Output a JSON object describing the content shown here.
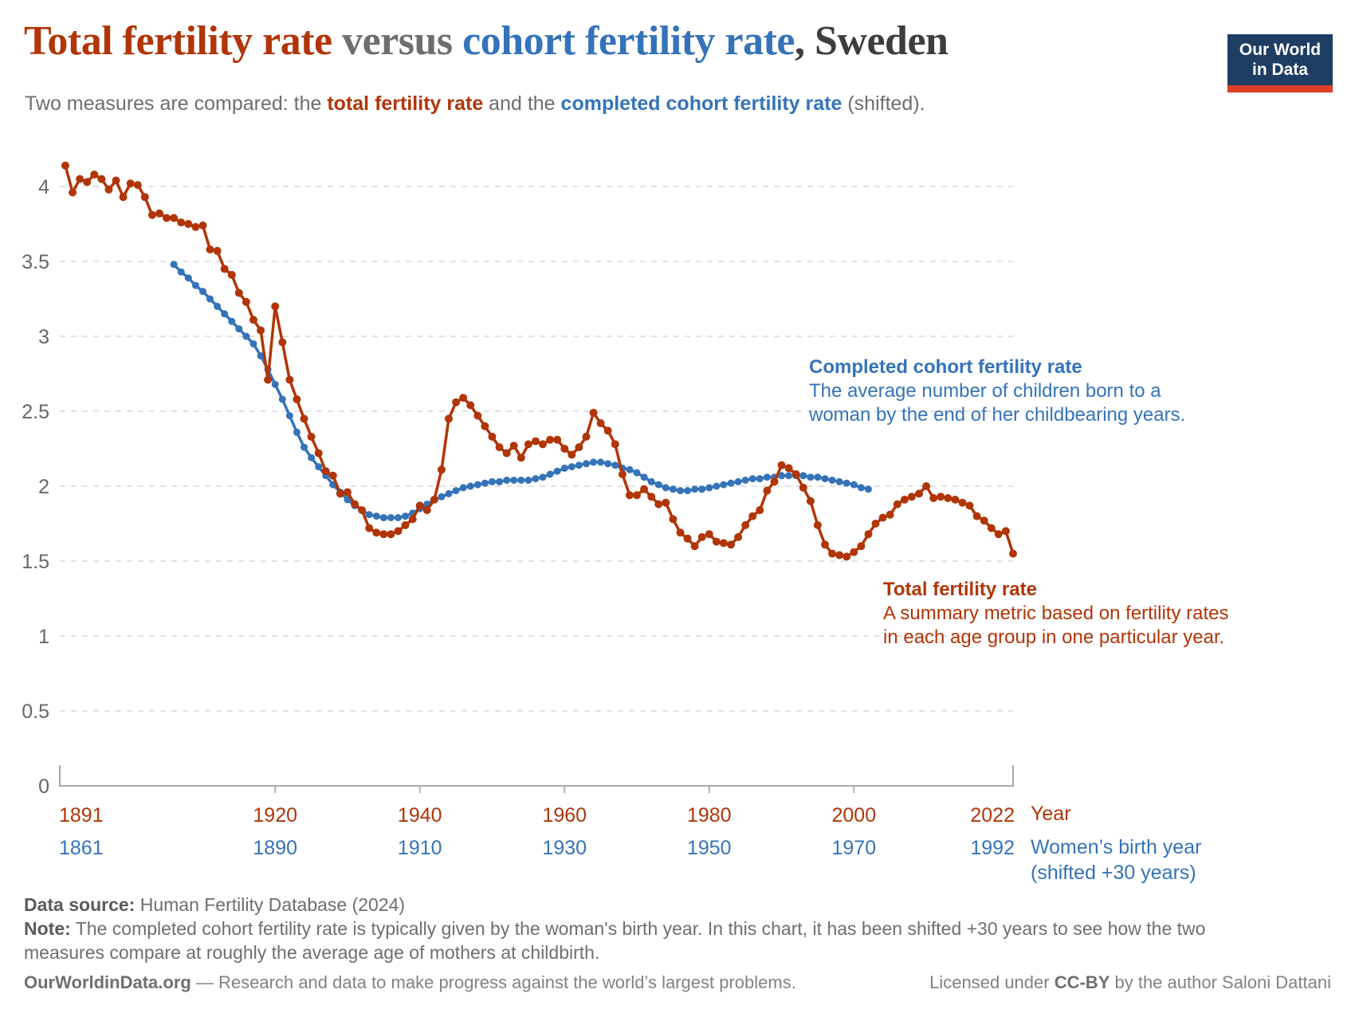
{
  "header": {
    "title": {
      "tfr": "Total fertility rate",
      "versus": " versus ",
      "ccf": "cohort fertility rate",
      "country": ", Sweden"
    },
    "subtitle": {
      "prefix": "Two measures are compared: the ",
      "bold_red": "total fertility rate",
      "mid": " and the ",
      "bold_blue": "completed cohort fertility rate",
      "suffix": " (shifted)."
    },
    "logo": {
      "line1": "Our World",
      "line2": "in Data"
    }
  },
  "chart_data": {
    "type": "line",
    "title": "Total fertility rate versus cohort fertility rate, Sweden",
    "grid": true,
    "colors": {
      "tfr_red": "#b13507",
      "cohort_blue": "#3573b9"
    },
    "y_axis": {
      "range": [
        0,
        4.25
      ],
      "ticks": [
        {
          "value": 0,
          "label": "0"
        },
        {
          "value": 0.5,
          "label": "0.5"
        },
        {
          "value": 1,
          "label": "1"
        },
        {
          "value": 1.5,
          "label": "1.5"
        },
        {
          "value": 2,
          "label": "2"
        },
        {
          "value": 2.5,
          "label": "2.5"
        },
        {
          "value": 3,
          "label": "3"
        },
        {
          "value": 3.5,
          "label": "3.5"
        },
        {
          "value": 4,
          "label": "4"
        }
      ]
    },
    "x_axis": {
      "year_title": "Year",
      "birth_title": "Women’s birth year",
      "birth_title_note": "(shifted +30 years)",
      "ticks": [
        {
          "year": 1891,
          "year_label": "1891",
          "birth_label": "1861"
        },
        {
          "year": 1920,
          "year_label": "1920",
          "birth_label": "1890"
        },
        {
          "year": 1940,
          "year_label": "1940",
          "birth_label": "1910"
        },
        {
          "year": 1960,
          "year_label": "1960",
          "birth_label": "1930"
        },
        {
          "year": 1980,
          "year_label": "1980",
          "birth_label": "1950"
        },
        {
          "year": 2000,
          "year_label": "2000",
          "birth_label": "1970"
        },
        {
          "year": 2022,
          "year_label": "2022",
          "birth_label": "1992"
        }
      ]
    },
    "series": [
      {
        "name": "Total fertility rate",
        "color": "#b13507",
        "start_year": 1891,
        "end_year": 2022,
        "values": [
          4.14,
          3.96,
          4.05,
          4.03,
          4.08,
          4.05,
          3.98,
          4.04,
          3.93,
          4.02,
          4.01,
          3.93,
          3.81,
          3.82,
          3.79,
          3.79,
          3.76,
          3.75,
          3.73,
          3.74,
          3.58,
          3.57,
          3.45,
          3.41,
          3.29,
          3.23,
          3.11,
          3.04,
          2.71,
          3.2,
          2.96,
          2.71,
          2.58,
          2.45,
          2.33,
          2.22,
          2.1,
          2.07,
          1.95,
          1.96,
          1.88,
          1.84,
          1.72,
          1.69,
          1.68,
          1.68,
          1.7,
          1.74,
          1.78,
          1.87,
          1.84,
          1.91,
          2.11,
          2.45,
          2.56,
          2.59,
          2.54,
          2.47,
          2.4,
          2.33,
          2.26,
          2.22,
          2.27,
          2.19,
          2.28,
          2.3,
          2.28,
          2.31,
          2.31,
          2.25,
          2.21,
          2.26,
          2.33,
          2.49,
          2.42,
          2.37,
          2.28,
          2.08,
          1.94,
          1.94,
          1.98,
          1.93,
          1.88,
          1.89,
          1.78,
          1.69,
          1.65,
          1.6,
          1.66,
          1.68,
          1.63,
          1.62,
          1.61,
          1.66,
          1.74,
          1.8,
          1.84,
          1.97,
          2.03,
          2.14,
          2.12,
          2.08,
          1.99,
          1.9,
          1.74,
          1.61,
          1.55,
          1.54,
          1.53,
          1.56,
          1.6,
          1.68,
          1.75,
          1.79,
          1.81,
          1.88,
          1.91,
          1.93,
          1.95,
          2.0,
          1.92,
          1.93,
          1.92,
          1.91,
          1.89,
          1.87,
          1.8,
          1.77,
          1.72,
          1.68,
          1.7,
          1.55
        ]
      },
      {
        "name": "Completed cohort fertility rate",
        "color": "#3573b9",
        "start_year": 1906,
        "end_year": 2002,
        "start_birth_year": 1876,
        "end_birth_year": 1972,
        "shift_years": 30,
        "values": [
          3.48,
          3.43,
          3.39,
          3.34,
          3.3,
          3.25,
          3.2,
          3.15,
          3.1,
          3.05,
          3.0,
          2.95,
          2.87,
          2.78,
          2.68,
          2.58,
          2.47,
          2.36,
          2.26,
          2.19,
          2.13,
          2.07,
          2.01,
          1.96,
          1.91,
          1.87,
          1.84,
          1.81,
          1.8,
          1.79,
          1.79,
          1.79,
          1.8,
          1.82,
          1.85,
          1.88,
          1.91,
          1.93,
          1.95,
          1.97,
          1.99,
          2.0,
          2.01,
          2.02,
          2.03,
          2.03,
          2.04,
          2.04,
          2.04,
          2.04,
          2.05,
          2.06,
          2.08,
          2.1,
          2.12,
          2.13,
          2.14,
          2.15,
          2.16,
          2.16,
          2.15,
          2.14,
          2.12,
          2.11,
          2.09,
          2.06,
          2.03,
          2.01,
          1.99,
          1.98,
          1.97,
          1.97,
          1.98,
          1.98,
          1.99,
          2.0,
          2.01,
          2.02,
          2.03,
          2.04,
          2.05,
          2.05,
          2.06,
          2.06,
          2.07,
          2.07,
          2.07,
          2.07,
          2.06,
          2.06,
          2.05,
          2.04,
          2.03,
          2.02,
          2.01,
          1.99,
          1.98
        ]
      }
    ]
  },
  "annotations": {
    "blue": {
      "head": "Completed cohort fertility rate",
      "line1": "The average number of children born to a",
      "line2": "woman by the end of her childbearing years."
    },
    "red": {
      "head": "Total fertility rate",
      "line1": "A summary metric based on fertility rates",
      "line2": "in each age group in one particular year."
    }
  },
  "footer": {
    "source_label": "Data source:",
    "source_text": " Human Fertility Database (2024)",
    "note_label": "Note:",
    "note_line1": " The completed cohort fertility rate is typically given by the woman's birth year. In this chart, it has been shifted +30 years to see how the two",
    "note_line2": "measures compare at roughly the average age of mothers at childbirth.",
    "credit_bold": "OurWorldinData.org",
    "credit_rest": " — Research and data to make progress against the world’s largest problems.",
    "license_prefix": "Licensed under ",
    "license_bold": "CC-BY",
    "license_suffix": " by the author Saloni Dattani"
  }
}
